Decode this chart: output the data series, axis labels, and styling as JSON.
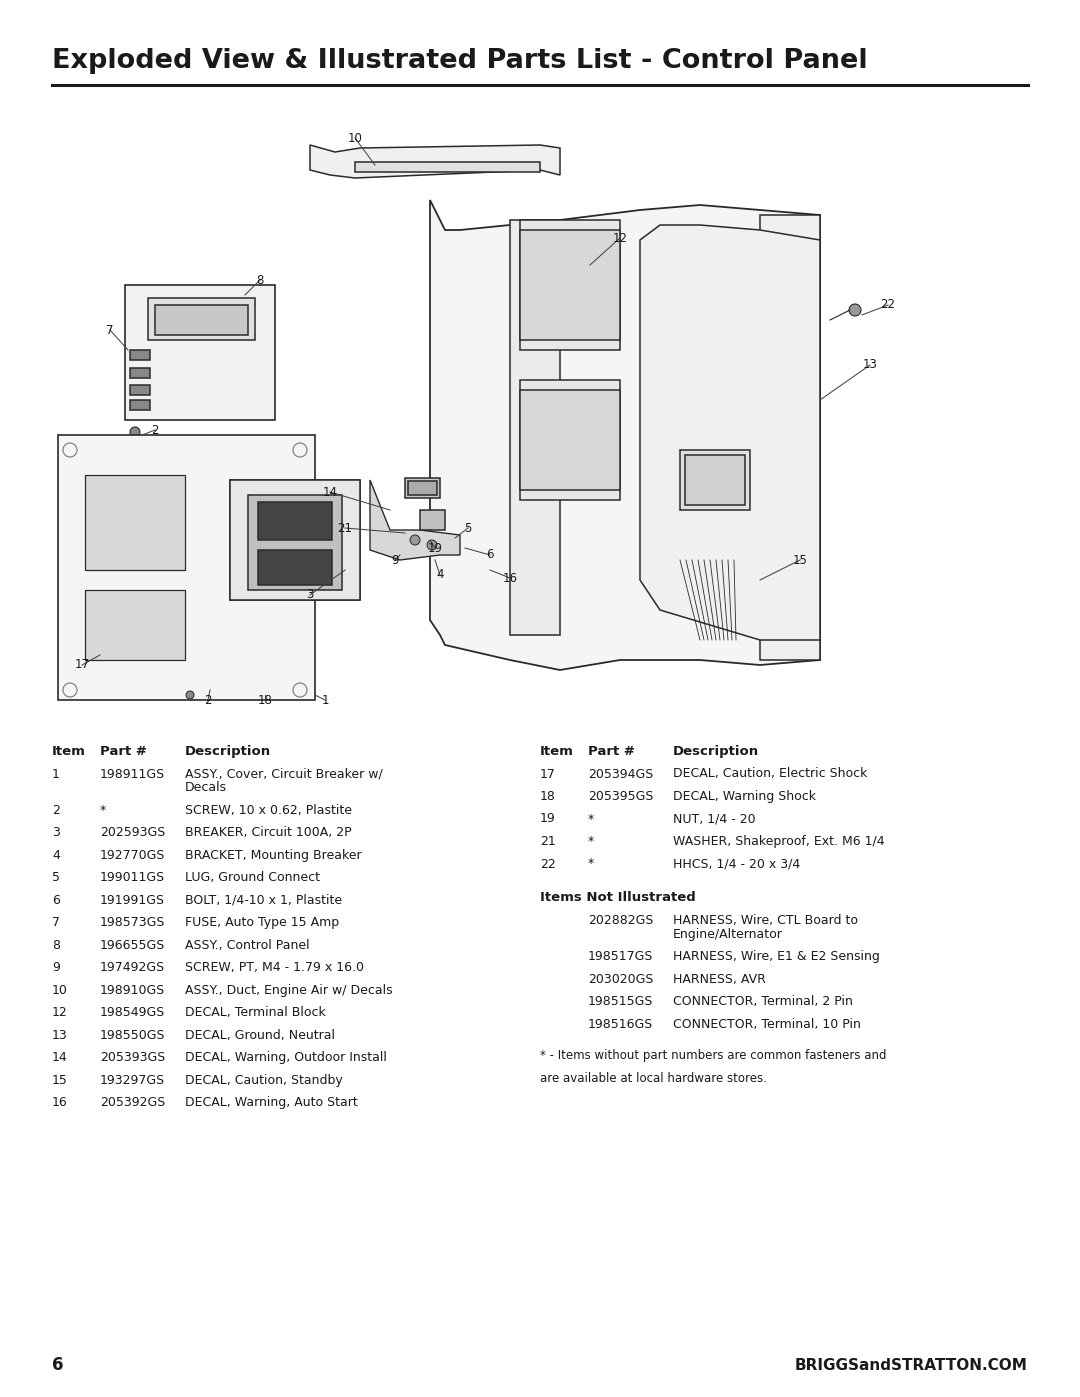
{
  "title": "Exploded View & Illustrated Parts List - Control Panel",
  "page_number": "6",
  "website": "BRIGGSandSTRATTON.COM",
  "bg_color": "#ffffff",
  "text_color": "#1a1a1a",
  "left_table_rows": [
    [
      "1",
      "198911GS",
      "ASSY., Cover, Circuit Breaker w/",
      "    Decals"
    ],
    [
      "2",
      "*",
      "SCREW, 10 x 0.62, Plastite",
      ""
    ],
    [
      "3",
      "202593GS",
      "BREAKER, Circuit 100A, 2P",
      ""
    ],
    [
      "4",
      "192770GS",
      "BRACKET, Mounting Breaker",
      ""
    ],
    [
      "5",
      "199011GS",
      "LUG, Ground Connect",
      ""
    ],
    [
      "6",
      "191991GS",
      "BOLT, 1/4-10 x 1, Plastite",
      ""
    ],
    [
      "7",
      "198573GS",
      "FUSE, Auto Type 15 Amp",
      ""
    ],
    [
      "8",
      "196655GS",
      "ASSY., Control Panel",
      ""
    ],
    [
      "9",
      "197492GS",
      "SCREW, PT, M4 - 1.79 x 16.0",
      ""
    ],
    [
      "10",
      "198910GS",
      "ASSY., Duct, Engine Air w/ Decals",
      ""
    ],
    [
      "12",
      "198549GS",
      "DECAL, Terminal Block",
      ""
    ],
    [
      "13",
      "198550GS",
      "DECAL, Ground, Neutral",
      ""
    ],
    [
      "14",
      "205393GS",
      "DECAL, Warning, Outdoor Install",
      ""
    ],
    [
      "15",
      "193297GS",
      "DECAL, Caution, Standby",
      ""
    ],
    [
      "16",
      "205392GS",
      "DECAL, Warning, Auto Start",
      ""
    ]
  ],
  "right_table_rows": [
    [
      "17",
      "205394GS",
      "DECAL, Caution, Electric Shock"
    ],
    [
      "18",
      "205395GS",
      "DECAL, Warning Shock"
    ],
    [
      "19",
      "*",
      "NUT, 1/4 - 20"
    ],
    [
      "21",
      "*",
      "WASHER, Shakeproof, Ext. M6 1/4"
    ],
    [
      "22",
      "*",
      "HHCS, 1/4 - 20 x 3/4"
    ]
  ],
  "not_illustrated_rows": [
    [
      "202882GS",
      "HARNESS, Wire, CTL Board to",
      "    Engine/Alternator"
    ],
    [
      "198517GS",
      "HARNESS, Wire, E1 & E2 Sensing",
      ""
    ],
    [
      "203020GS",
      "HARNESS, AVR",
      ""
    ],
    [
      "198515GS",
      "CONNECTOR, Terminal, 2 Pin",
      ""
    ],
    [
      "198516GS",
      "CONNECTOR, Terminal, 10 Pin",
      ""
    ]
  ],
  "footnote_line1": "* - Items without part numbers are common fasteners and",
  "footnote_line2": "are available at local hardware stores."
}
